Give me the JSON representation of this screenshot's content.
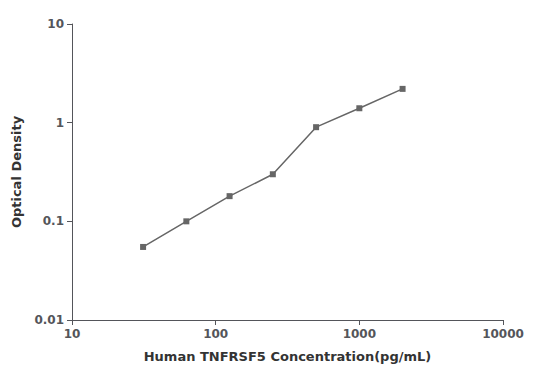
{
  "chart_data": {
    "type": "line",
    "x": [
      31.25,
      62.5,
      125,
      250,
      500,
      1000,
      2000
    ],
    "values": [
      0.055,
      0.1,
      0.18,
      0.3,
      0.9,
      1.4,
      2.2
    ],
    "xlabel": "Human TNFRSF5 Concentration(pg/mL)",
    "ylabel": "Optical Density",
    "log": true,
    "xlim": [
      10,
      10000
    ],
    "ylim": [
      0.01,
      10
    ],
    "xticks": [
      10,
      100,
      1000,
      10000
    ],
    "yticks": [
      0.01,
      0.1,
      1,
      10
    ],
    "color": "#666666",
    "marker": "square",
    "grid": false
  }
}
